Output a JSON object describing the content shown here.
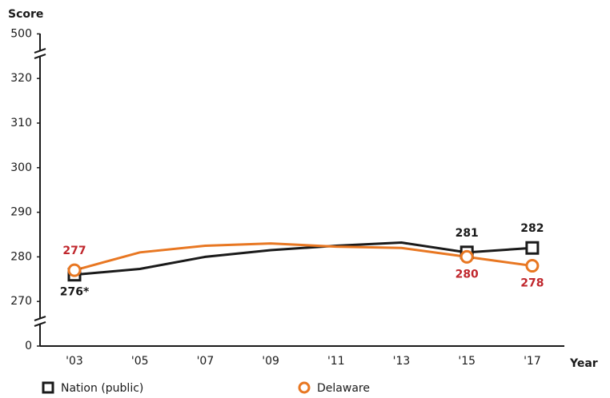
{
  "chart_data": {
    "type": "line",
    "y_label": "Score",
    "x_label": "Year",
    "categories": [
      "'03",
      "'05",
      "'07",
      "'09",
      "'11",
      "'13",
      "'15",
      "'17"
    ],
    "series": [
      {
        "name": "Nation (public)",
        "color": "#1a1a1a",
        "marker": "square",
        "values": [
          276,
          277.3,
          280,
          281.5,
          282.5,
          283.2,
          281,
          282
        ],
        "value_labels": [
          "276*",
          null,
          null,
          null,
          null,
          null,
          "281",
          "282"
        ],
        "label_color": "#1a1a1a"
      },
      {
        "name": "Delaware",
        "color": "#e87722",
        "marker": "circle",
        "values": [
          277,
          281,
          282.5,
          283,
          282.3,
          282,
          280,
          278
        ],
        "value_labels": [
          "277",
          null,
          null,
          null,
          null,
          null,
          "280",
          "278"
        ],
        "label_color": "#c0272d"
      }
    ],
    "ylim": [
      0,
      500
    ],
    "yticks": [
      0,
      270,
      280,
      290,
      300,
      310,
      320,
      500
    ],
    "grid": false
  }
}
